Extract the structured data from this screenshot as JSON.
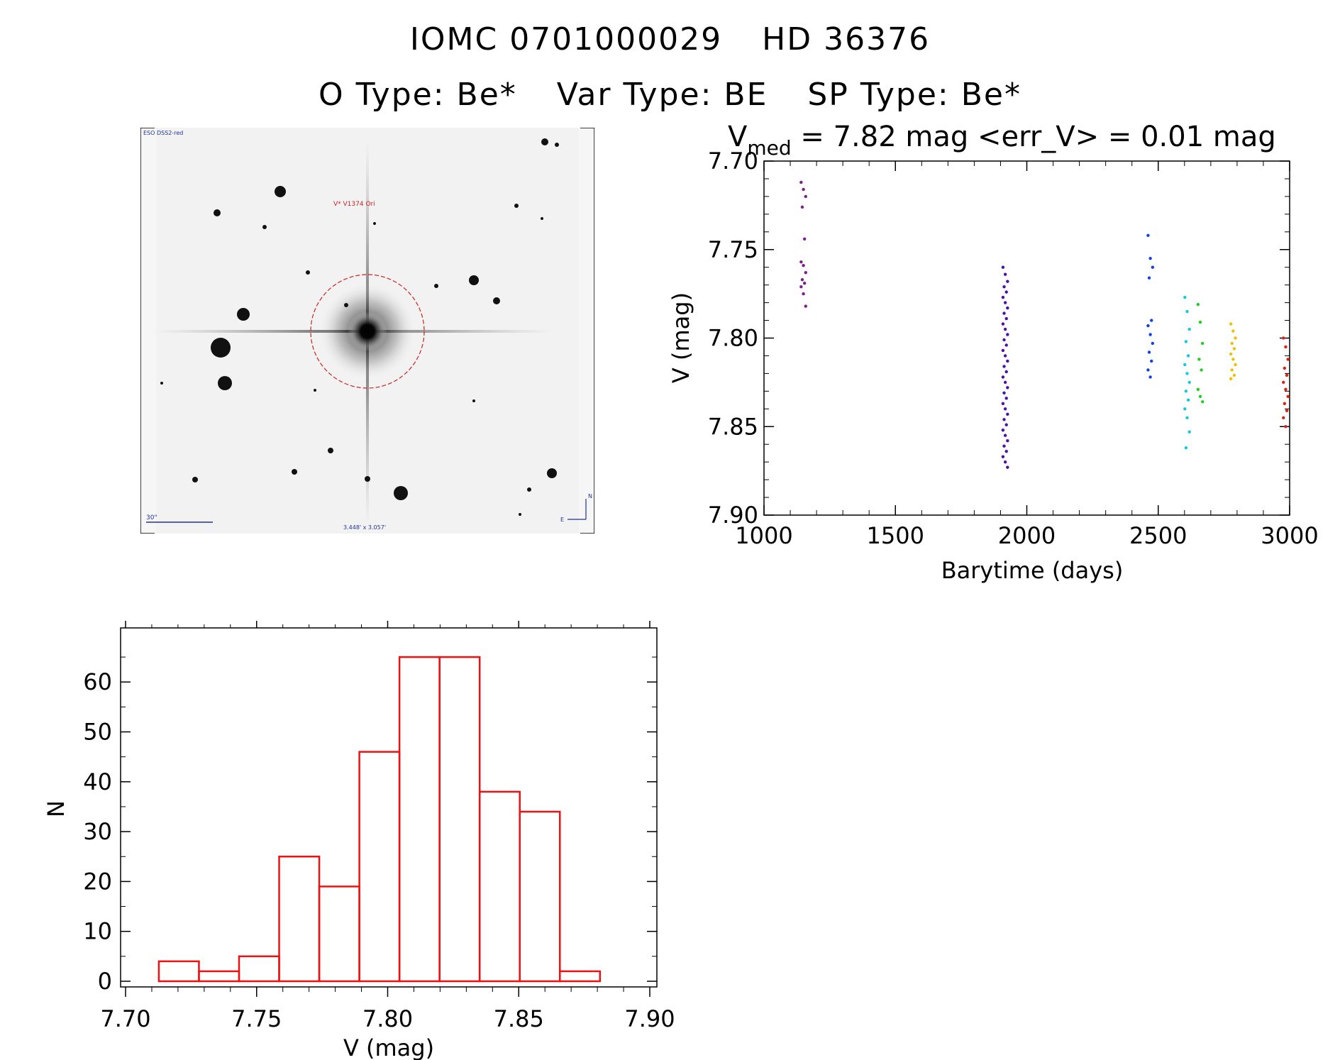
{
  "header": {
    "object_id": "IOMC 0701000029",
    "hd_name": "HD  36376",
    "o_type": "O Type: Be*",
    "var_type": "Var Type: BE",
    "sp_type": "SP Type: Be*"
  },
  "image_panel": {
    "survey_label": "ESO DSS2-red",
    "target_label": "V* V1374 Ori",
    "scale_label": "30\"",
    "size_label": "3.448' x 3.057'",
    "compass_n": "N",
    "compass_e": "E"
  },
  "lightcurve": {
    "title_v": "V",
    "title_sub": "med",
    "title_rest": " = 7.82 mag <err_V> = 0.01 mag",
    "xlabel": "Barytime (days)",
    "ylabel": "V (mag)"
  },
  "histogram": {
    "xlabel": "V (mag)",
    "ylabel": "N"
  },
  "chart_data": [
    {
      "type": "scatter",
      "xlim": [
        1000,
        3000
      ],
      "ylim": [
        7.9,
        7.7
      ],
      "x_ticks": [
        "1000",
        "1500",
        "2000",
        "2500",
        "3000"
      ],
      "y_ticks": [
        "7.70",
        "7.75",
        "7.80",
        "7.85",
        "7.90"
      ],
      "grid": false,
      "groups": [
        {
          "x": 1150,
          "color": "#7a1f8a",
          "y": [
            7.712,
            7.716,
            7.72,
            7.726,
            7.744,
            7.757,
            7.759,
            7.763,
            7.767,
            7.769,
            7.771,
            7.775,
            7.782
          ]
        },
        {
          "x": 1918,
          "color": "#4a10a8",
          "y": [
            7.76,
            7.764,
            7.768,
            7.771,
            7.774,
            7.777,
            7.78,
            7.783,
            7.786,
            7.789,
            7.792,
            7.795,
            7.798,
            7.801,
            7.804,
            7.807,
            7.81,
            7.813,
            7.816,
            7.819,
            7.822,
            7.825,
            7.828,
            7.831,
            7.834,
            7.837,
            7.84,
            7.843,
            7.846,
            7.849,
            7.852,
            7.855,
            7.858,
            7.861,
            7.864,
            7.867,
            7.87,
            7.873
          ]
        },
        {
          "x": 2470,
          "color": "#1144dd",
          "y": [
            7.742,
            7.755,
            7.76,
            7.766,
            7.79,
            7.793,
            7.798,
            7.803,
            7.808,
            7.813,
            7.818,
            7.822
          ]
        },
        {
          "x": 2610,
          "color": "#16c8dd",
          "y": [
            7.777,
            7.785,
            7.795,
            7.802,
            7.81,
            7.815,
            7.82,
            7.825,
            7.83,
            7.835,
            7.84,
            7.845,
            7.853,
            7.862
          ]
        },
        {
          "x": 2660,
          "color": "#22cc22",
          "y": [
            7.781,
            7.791,
            7.803,
            7.812,
            7.818,
            7.829,
            7.833,
            7.836
          ]
        },
        {
          "x": 2785,
          "color": "#f0c000",
          "y": [
            7.792,
            7.796,
            7.8,
            7.803,
            7.806,
            7.809,
            7.812,
            7.815,
            7.818,
            7.821,
            7.823
          ]
        },
        {
          "x": 2985,
          "color": "#dd2211",
          "y": [
            7.8,
            7.805,
            7.812,
            7.817,
            7.821,
            7.825,
            7.829,
            7.833,
            7.837,
            7.841,
            7.845,
            7.85
          ]
        }
      ]
    },
    {
      "type": "bar",
      "xlim": [
        7.7,
        7.9
      ],
      "ylim": [
        0,
        68
      ],
      "x_ticks": [
        "7.70",
        "7.75",
        "7.80",
        "7.85",
        "7.90"
      ],
      "y_ticks": [
        "0",
        "10",
        "20",
        "30",
        "40",
        "50",
        "60"
      ],
      "bin_width": 0.0153,
      "bin_starts": [
        7.7127,
        7.728,
        7.7433,
        7.7586,
        7.7739,
        7.7892,
        7.8045,
        7.8198,
        7.8351,
        7.8504,
        7.8657
      ],
      "values": [
        4,
        2,
        5,
        25,
        19,
        46,
        65,
        65,
        38,
        34,
        2
      ],
      "color": "#ee1111"
    }
  ]
}
